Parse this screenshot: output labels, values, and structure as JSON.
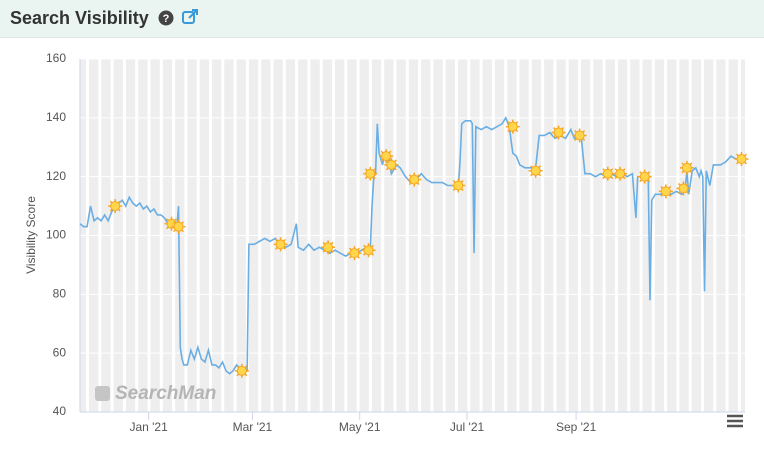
{
  "title": "Search Visibility",
  "chart_data": {
    "type": "line",
    "y_label": "Visibility Score",
    "watermark": "SearchMan",
    "color": "#6aaee4",
    "marker_color": "#f5a623",
    "xlim": [
      -39,
      339
    ],
    "ylim": [
      40,
      160
    ],
    "yticks": [
      40,
      60,
      80,
      100,
      120,
      140,
      160
    ],
    "xticks": [
      {
        "value": 0,
        "label": "Jan '21"
      },
      {
        "value": 59,
        "label": "Mar '21"
      },
      {
        "value": 120,
        "label": "May '21"
      },
      {
        "value": 181,
        "label": "Jul '21"
      },
      {
        "value": 243,
        "label": "Sep '21"
      }
    ],
    "x": [
      -39,
      -37,
      -35,
      -33,
      -31,
      -29,
      -27,
      -25,
      -23,
      -21,
      -19,
      -17,
      -15,
      -13,
      -11,
      -9,
      -7,
      -5,
      -3,
      -1,
      1,
      3,
      5,
      7,
      9,
      11,
      13,
      15,
      16,
      17,
      18,
      19,
      20,
      22,
      24,
      26,
      28,
      30,
      32,
      34,
      36,
      38,
      40,
      42,
      44,
      46,
      48,
      50,
      52,
      54,
      56,
      57,
      60,
      63,
      66,
      69,
      72,
      75,
      78,
      81,
      84,
      85,
      88,
      91,
      94,
      97,
      100,
      103,
      106,
      109,
      112,
      115,
      118,
      121,
      124,
      126,
      127,
      128,
      129,
      130,
      131,
      133,
      134,
      136,
      138,
      141,
      143,
      146,
      149,
      152,
      155,
      158,
      161,
      164,
      167,
      170,
      173,
      176,
      177,
      178,
      180,
      183,
      184,
      185,
      186,
      189,
      192,
      195,
      198,
      201,
      203,
      205,
      207,
      209,
      211,
      214,
      217,
      220,
      222,
      225,
      228,
      231,
      234,
      237,
      240,
      242,
      244,
      246,
      248,
      251,
      254,
      257,
      260,
      263,
      266,
      269,
      272,
      275,
      277,
      278,
      281,
      284,
      285,
      286,
      288,
      291,
      294,
      297,
      300,
      303,
      305,
      306,
      307,
      309,
      311,
      313,
      314,
      315,
      316,
      317,
      319,
      321,
      323,
      325,
      328,
      331,
      334,
      337,
      339
    ],
    "values": [
      104,
      103,
      103,
      110,
      105,
      106,
      105,
      107,
      105,
      108,
      110,
      111,
      112,
      110,
      113,
      111,
      110,
      111,
      109,
      110,
      108,
      109,
      107,
      107,
      106,
      104,
      103,
      104,
      102,
      110,
      62,
      58,
      56,
      56,
      61,
      58,
      62,
      58,
      57,
      61,
      56,
      56,
      55,
      57,
      54,
      53,
      54,
      56,
      55,
      54,
      54,
      97,
      97,
      98,
      99,
      98,
      99,
      97,
      96,
      97,
      104,
      96,
      95,
      97,
      95,
      96,
      95,
      94,
      95,
      94,
      93,
      94,
      94,
      95,
      96,
      95,
      110,
      120,
      121,
      138,
      128,
      124,
      128,
      127,
      121,
      124,
      123,
      120,
      118,
      119,
      121,
      119,
      118,
      118,
      118,
      117,
      117,
      116,
      125,
      138,
      139,
      139,
      138,
      94,
      137,
      136,
      137,
      136,
      137,
      138,
      140,
      137,
      128,
      127,
      124,
      123,
      123,
      123,
      134,
      134,
      135,
      133,
      134,
      133,
      136,
      133,
      134,
      133,
      121,
      121,
      120,
      121,
      120,
      121,
      120,
      121,
      120,
      121,
      106,
      120,
      120,
      120,
      78,
      112,
      114,
      114,
      115,
      114,
      115,
      114,
      116,
      122,
      114,
      122,
      123,
      120,
      122,
      120,
      81,
      122,
      117,
      124,
      124,
      124,
      125,
      127,
      126,
      126,
      125
    ],
    "markers": {
      "x": [
        -19,
        13,
        17,
        53,
        75,
        102,
        117,
        125,
        126,
        135,
        138,
        151,
        176,
        207,
        220,
        233,
        245,
        261,
        268,
        282,
        294,
        304,
        306,
        337
      ],
      "y": [
        110,
        104,
        103,
        54,
        97,
        96,
        94,
        95,
        121,
        127,
        124,
        119,
        117,
        137,
        122,
        135,
        134,
        121,
        121,
        120,
        115,
        116,
        123,
        126
      ]
    }
  }
}
